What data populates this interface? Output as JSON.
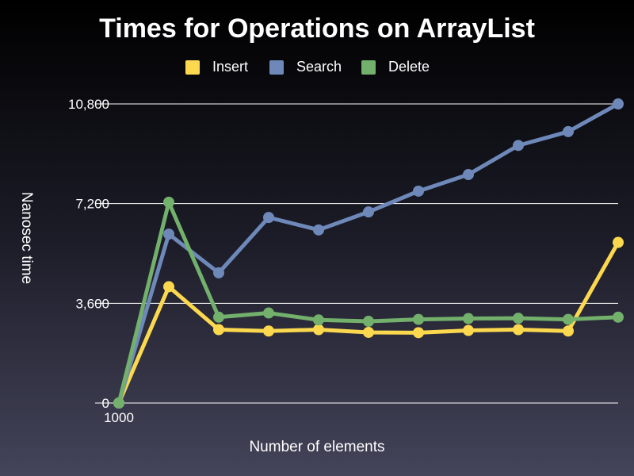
{
  "chart_data": {
    "type": "line",
    "title": "Times for Operations on ArrayList",
    "xlabel": "Number of elements",
    "ylabel": "Nanosec time",
    "x_tick_labels": [
      "1000"
    ],
    "y_ticks": [
      0,
      3600,
      7200,
      10800
    ],
    "y_tick_labels": [
      "0",
      "3,600",
      "7,200",
      "10,800"
    ],
    "ylim": [
      0,
      10800
    ],
    "grid": true,
    "legend": "top-center",
    "point_count": 11,
    "series": [
      {
        "name": "Insert",
        "color": "#fbd84e",
        "values": [
          0,
          4200,
          2650,
          2600,
          2650,
          2550,
          2540,
          2620,
          2650,
          2600,
          5800
        ]
      },
      {
        "name": "Search",
        "color": "#6e89b9",
        "values": [
          0,
          6100,
          4700,
          6700,
          6250,
          6900,
          7650,
          8250,
          9300,
          9800,
          10800
        ]
      },
      {
        "name": "Delete",
        "color": "#72b06b",
        "values": [
          0,
          7250,
          3100,
          3250,
          3000,
          2950,
          3020,
          3050,
          3060,
          3020,
          3100
        ]
      }
    ]
  }
}
